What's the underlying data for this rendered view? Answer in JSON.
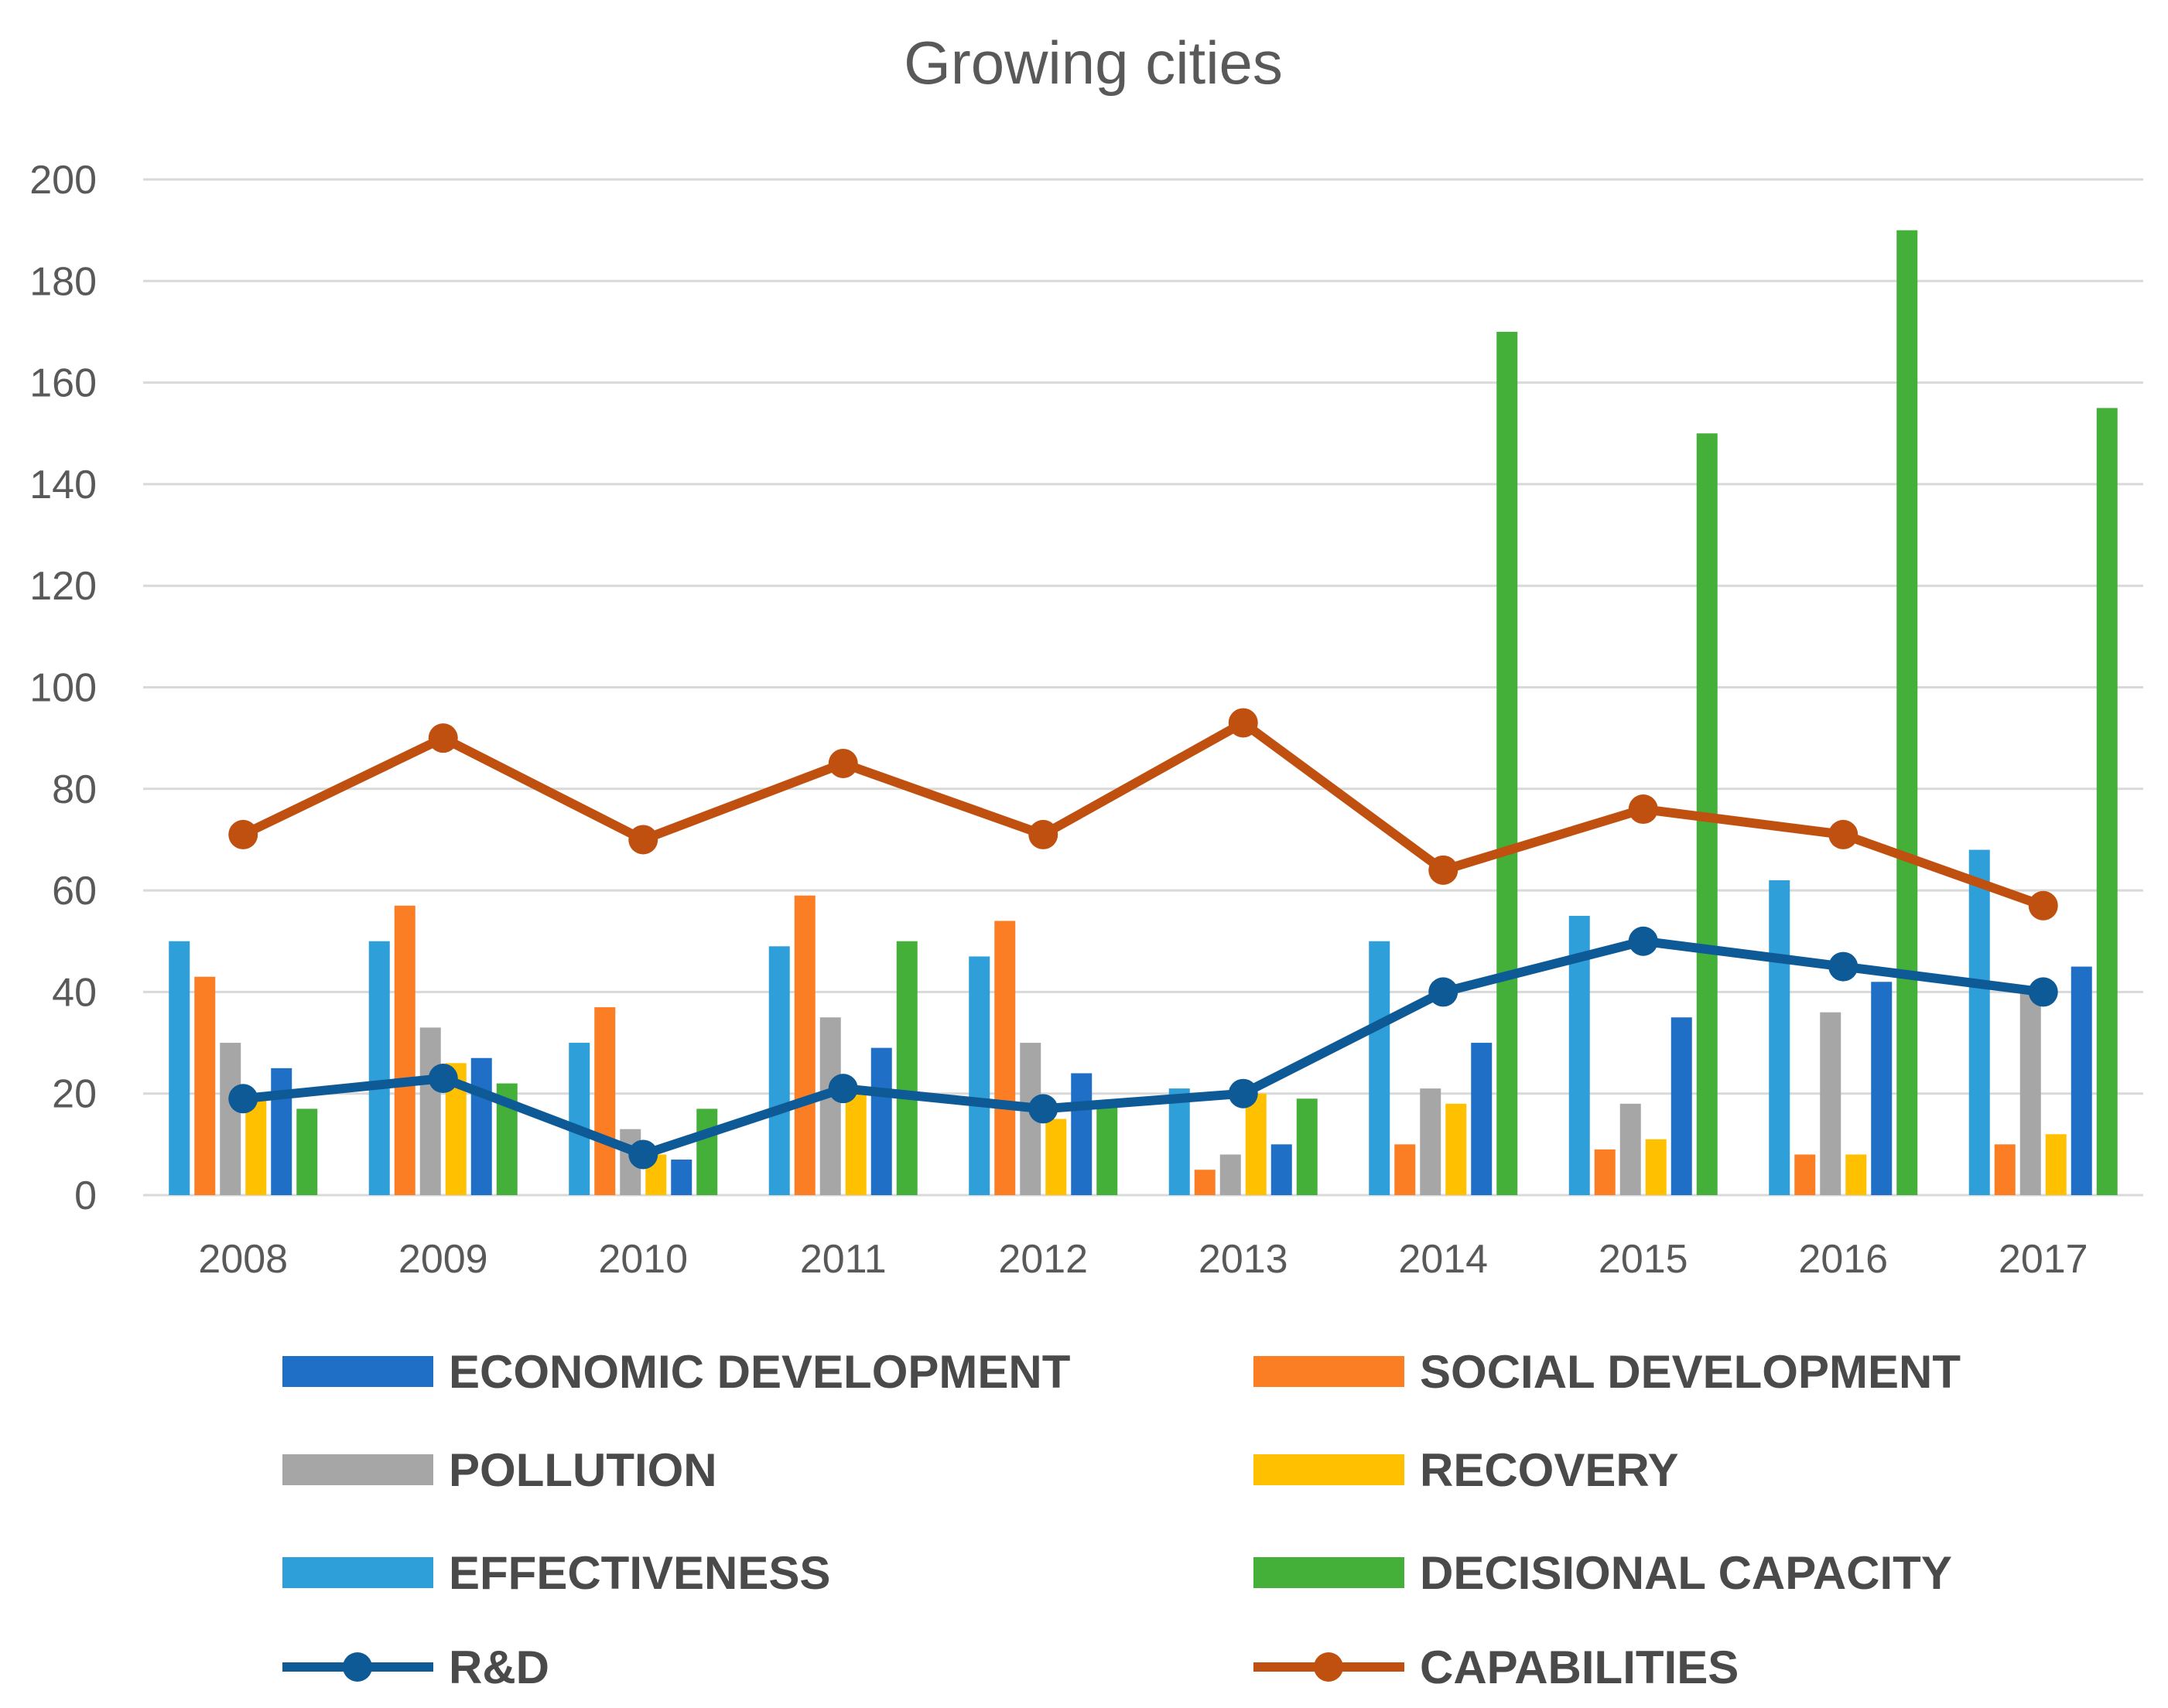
{
  "chart_data": {
    "type": "bar",
    "title": "Growing cities",
    "xlabel": "",
    "ylabel": "",
    "ylim": [
      0,
      200
    ],
    "yticks": [
      0,
      20,
      40,
      60,
      80,
      100,
      120,
      140,
      160,
      180,
      200
    ],
    "grid": true,
    "legend_position": "bottom",
    "categories": [
      "2008",
      "2009",
      "2010",
      "2011",
      "2012",
      "2013",
      "2014",
      "2015",
      "2016",
      "2017"
    ],
    "bar_series": [
      {
        "name": "EFFECTIVENESS",
        "color": "#2e9fd9",
        "values": [
          50,
          50,
          30,
          49,
          47,
          21,
          50,
          55,
          62,
          68
        ]
      },
      {
        "name": "SOCIAL DEVELOPMENT",
        "color": "#fb7d24",
        "values": [
          43,
          57,
          37,
          59,
          54,
          5,
          10,
          9,
          8,
          10
        ]
      },
      {
        "name": "POLLUTION",
        "color": "#a6a6a6",
        "values": [
          30,
          33,
          13,
          35,
          30,
          8,
          21,
          18,
          36,
          40
        ]
      },
      {
        "name": "RECOVERY",
        "color": "#ffc000",
        "values": [
          19,
          26,
          8,
          20,
          15,
          20,
          18,
          11,
          8,
          12
        ]
      },
      {
        "name": "ECONOMIC DEVELOPMENT",
        "color": "#1f6fc6",
        "values": [
          25,
          27,
          7,
          29,
          24,
          10,
          30,
          35,
          42,
          45
        ]
      },
      {
        "name": "DECISIONAL CAPACITY",
        "color": "#44b03a",
        "values": [
          17,
          22,
          17,
          50,
          18,
          19,
          170,
          150,
          190,
          155
        ]
      }
    ],
    "line_series": [
      {
        "name": "R&D",
        "color": "#0d5a96",
        "values": [
          19,
          23,
          8,
          21,
          17,
          20,
          40,
          50,
          45,
          40
        ]
      },
      {
        "name": "CAPABILITIES",
        "color": "#c0500f",
        "values": [
          71,
          90,
          70,
          85,
          71,
          93,
          64,
          76,
          71,
          57
        ]
      }
    ],
    "legend": [
      {
        "label": "ECONOMIC DEVELOPMENT",
        "kind": "bar",
        "color": "#1f6fc6"
      },
      {
        "label": "SOCIAL DEVELOPMENT",
        "kind": "bar",
        "color": "#fb7d24"
      },
      {
        "label": "POLLUTION",
        "kind": "bar",
        "color": "#a6a6a6"
      },
      {
        "label": "RECOVERY",
        "kind": "bar",
        "color": "#ffc000"
      },
      {
        "label": "EFFECTIVENESS",
        "kind": "bar",
        "color": "#2e9fd9"
      },
      {
        "label": "DECISIONAL CAPACITY",
        "kind": "bar",
        "color": "#44b03a"
      },
      {
        "label": "R&D",
        "kind": "line",
        "color": "#0d5a96"
      },
      {
        "label": "CAPABILITIES",
        "kind": "line",
        "color": "#c0500f"
      }
    ]
  }
}
